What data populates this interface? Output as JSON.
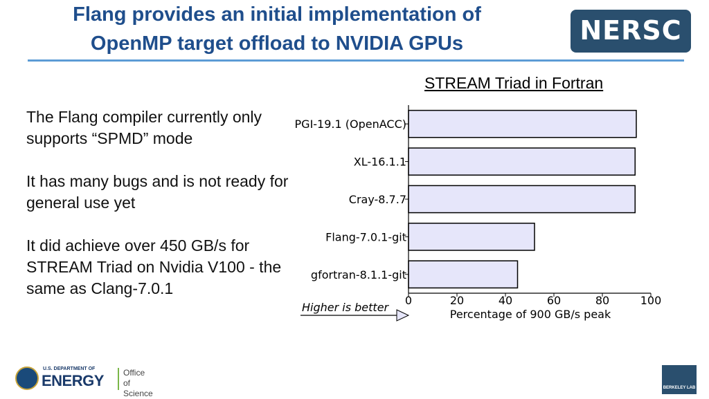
{
  "slide": {
    "title_line1": "Flang provides an initial implementation of",
    "title_line2": "OpenMP target offload to NVIDIA GPUs",
    "logo_text": "NERSC",
    "bullets": [
      "The Flang compiler currently only supports “SPMD” mode",
      "It has many bugs and is not ready for general use yet",
      "It did achieve over 450 GB/s for STREAM Triad on Nvidia V100 - the same as Clang-7.0.1"
    ],
    "chart_heading": "STREAM Triad in Fortran",
    "footer_left": {
      "small": "U.S. DEPARTMENT OF",
      "big": "ENERGY",
      "office_line1": "Office of",
      "office_line2": "Science"
    },
    "footer_right": "BERKELEY LAB"
  },
  "colors": {
    "title": "#1f4e8c",
    "rule": "#5b9bd5",
    "bar_fill": "#e6e6fa",
    "bar_stroke": "#000000"
  },
  "chart_data": {
    "type": "bar",
    "orientation": "horizontal",
    "categories": [
      "PGI-19.1 (OpenACC)",
      "XL-16.1.1",
      "Cray-8.7.7",
      "Flang-7.0.1-git",
      "gfortran-8.1.1-git"
    ],
    "values": [
      94,
      93.5,
      93.5,
      52,
      45
    ],
    "xlabel": "Percentage of 900 GB/s peak",
    "xlim": [
      0,
      100
    ],
    "xticks": [
      0,
      20,
      40,
      60,
      80,
      100
    ],
    "annotation": "Higher is better",
    "grid": false
  }
}
